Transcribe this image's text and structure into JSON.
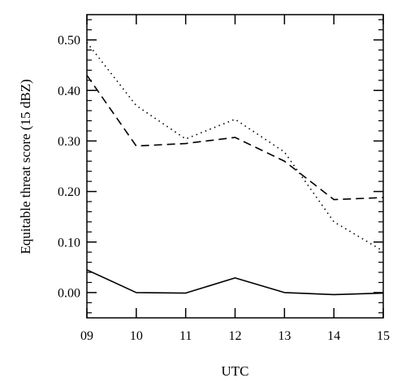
{
  "chart_data": {
    "type": "line",
    "title": "",
    "xlabel": "UTC",
    "ylabel": "Equitable threat score (15 dBZ)",
    "x": [
      "09",
      "10",
      "11",
      "12",
      "13",
      "14",
      "15"
    ],
    "xlim": [
      9,
      15
    ],
    "ylim": [
      -0.05,
      0.55
    ],
    "yticks": [
      "0.00",
      "0.10",
      "0.20",
      "0.30",
      "0.40",
      "0.50"
    ],
    "grid": false,
    "legend": "none",
    "series": [
      {
        "style": "solid",
        "values": [
          0.045,
          0.0,
          -0.001,
          0.029,
          0.0,
          -0.004,
          -0.001
        ]
      },
      {
        "style": "dashed",
        "values": [
          0.43,
          0.29,
          0.295,
          0.307,
          0.26,
          0.184,
          0.188
        ]
      },
      {
        "style": "dotted",
        "values": [
          0.495,
          0.37,
          0.304,
          0.343,
          0.278,
          0.14,
          0.082
        ]
      }
    ]
  }
}
